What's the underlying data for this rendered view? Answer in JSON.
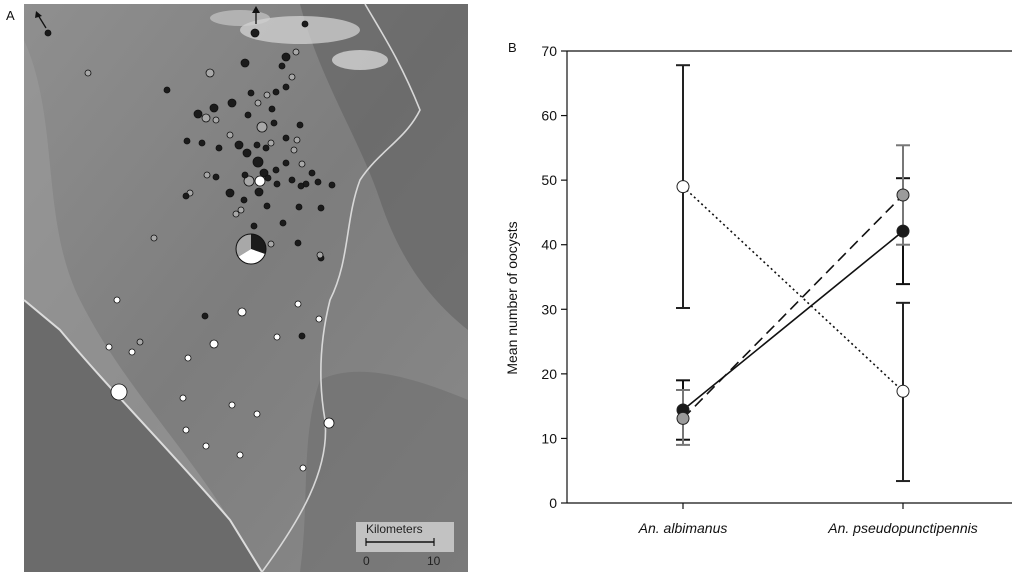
{
  "panel_a": {
    "label": "A",
    "scale_bar": {
      "title": "Kilometers",
      "left_label": "0",
      "right_label": "10"
    },
    "site_point_colors": {
      "filled": "#1b1b1b",
      "gray": "#a8a8a8",
      "white": "#ffffff"
    }
  },
  "chart_data": {
    "type": "line",
    "panel_label": "B",
    "title": "",
    "xlabel": "",
    "ylabel": "Mean number of oocysts",
    "categories": [
      "An. albimanus",
      "An. pseudopunctipennis"
    ],
    "ylim": [
      0,
      70
    ],
    "yticks": [
      0,
      10,
      20,
      30,
      40,
      50,
      60,
      70
    ],
    "grid": false,
    "legend": "none",
    "series": [
      {
        "style": "dotted",
        "marker": "open-circle",
        "color": "#222222",
        "values": [
          49,
          17.3
        ],
        "lower": [
          30.2,
          3.4
        ],
        "upper": [
          67.8,
          31
        ]
      },
      {
        "style": "solid",
        "marker": "black-circle",
        "color": "#111111",
        "values": [
          14.4,
          42.1
        ],
        "lower": [
          9.8,
          33.9
        ],
        "upper": [
          19,
          50.3
        ]
      },
      {
        "style": "dashed",
        "marker": "gray-circle",
        "color": "#777777",
        "values": [
          13.1,
          47.7
        ],
        "lower": [
          9,
          40
        ],
        "upper": [
          17.5,
          55.4
        ]
      }
    ]
  }
}
